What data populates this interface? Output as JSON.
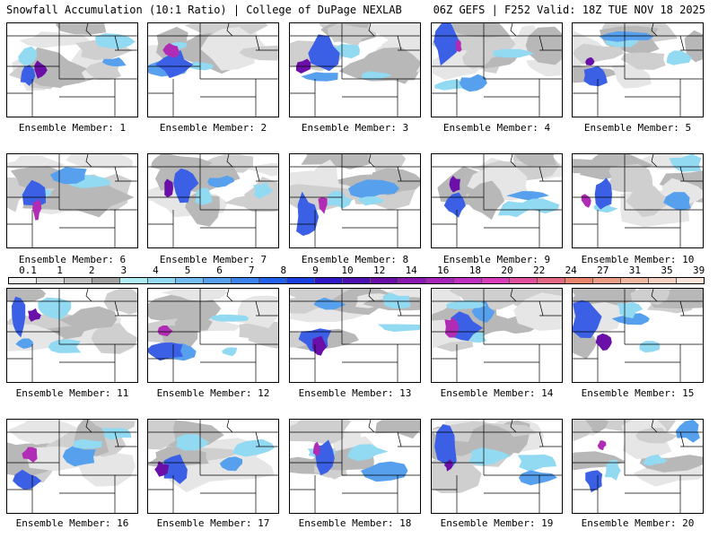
{
  "header": {
    "left_title": "Snowfall Accumulation (10:1 Ratio) | College of DuPage NEXLAB",
    "right_title": "06Z GEFS | F252 Valid: 18Z TUE NOV 18 2025"
  },
  "colorbar": {
    "labels": [
      "0.1",
      "1",
      "2",
      "3",
      "4",
      "5",
      "6",
      "7",
      "8",
      "9",
      "10",
      "12",
      "14",
      "16",
      "18",
      "20",
      "22",
      "24",
      "27",
      "31",
      "35",
      "39"
    ],
    "colors": [
      "#f2f2f2",
      "#d9d9d9",
      "#bfbfbf",
      "#a0a0a0",
      "#b0ecf4",
      "#92d9f2",
      "#74bdf0",
      "#56a0ee",
      "#3b82ec",
      "#2160e8",
      "#1a3fe0",
      "#3018c8",
      "#4c10b0",
      "#6a10a8",
      "#8a18b0",
      "#a624b8",
      "#c030c0",
      "#d83cb8",
      "#e0509c",
      "#e46884",
      "#e8846c",
      "#ec9c84",
      "#f0b8a0",
      "#f4d0c0",
      "#f8e4d8"
    ]
  },
  "panels": [
    {
      "label": "Ensemble Member: 1"
    },
    {
      "label": "Ensemble Member: 2"
    },
    {
      "label": "Ensemble Member: 3"
    },
    {
      "label": "Ensemble Member: 4"
    },
    {
      "label": "Ensemble Member: 5"
    },
    {
      "label": "Ensemble Member: 6"
    },
    {
      "label": "Ensemble Member: 7"
    },
    {
      "label": "Ensemble Member: 8"
    },
    {
      "label": "Ensemble Member: 9"
    },
    {
      "label": "Ensemble Member: 10"
    },
    {
      "label": "Ensemble Member: 11"
    },
    {
      "label": "Ensemble Member: 12"
    },
    {
      "label": "Ensemble Member: 13"
    },
    {
      "label": "Ensemble Member: 14"
    },
    {
      "label": "Ensemble Member: 15"
    },
    {
      "label": "Ensemble Member: 16"
    },
    {
      "label": "Ensemble Member: 17"
    },
    {
      "label": "Ensemble Member: 18"
    },
    {
      "label": "Ensemble Member: 19"
    },
    {
      "label": "Ensemble Member: 20"
    }
  ]
}
